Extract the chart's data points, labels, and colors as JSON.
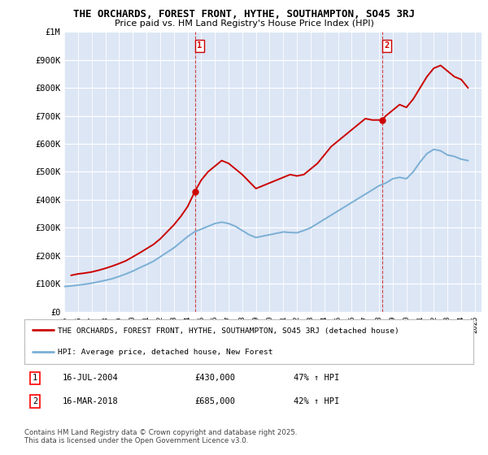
{
  "title_line1": "THE ORCHARDS, FOREST FRONT, HYTHE, SOUTHAMPTON, SO45 3RJ",
  "title_line2": "Price paid vs. HM Land Registry's House Price Index (HPI)",
  "plot_bg_color": "#dce6f5",
  "red_color": "#cc0000",
  "blue_color": "#7bafd4",
  "red_label": "THE ORCHARDS, FOREST FRONT, HYTHE, SOUTHAMPTON, SO45 3RJ (detached house)",
  "blue_label": "HPI: Average price, detached house, New Forest",
  "ylabel_ticks": [
    "£0",
    "£100K",
    "£200K",
    "£300K",
    "£400K",
    "£500K",
    "£600K",
    "£700K",
    "£800K",
    "£900K",
    "£1M"
  ],
  "ytick_values": [
    0,
    100000,
    200000,
    300000,
    400000,
    500000,
    600000,
    700000,
    800000,
    900000,
    1000000
  ],
  "annotation1": {
    "label": "1",
    "date": "16-JUL-2004",
    "price": "£430,000",
    "hpi": "47% ↑ HPI",
    "x_year": 2004.54,
    "y_val": 430000
  },
  "annotation2": {
    "label": "2",
    "date": "16-MAR-2018",
    "price": "£685,000",
    "hpi": "42% ↑ HPI",
    "x_year": 2018.21,
    "y_val": 685000
  },
  "footer": "Contains HM Land Registry data © Crown copyright and database right 2025.\nThis data is licensed under the Open Government Licence v3.0.",
  "xmin": 1995,
  "xmax": 2025.5,
  "ymin": 0,
  "ymax": 1000000,
  "xticks": [
    1995,
    1996,
    1997,
    1998,
    1999,
    2000,
    2001,
    2002,
    2003,
    2004,
    2005,
    2006,
    2007,
    2008,
    2009,
    2010,
    2011,
    2012,
    2013,
    2014,
    2015,
    2016,
    2017,
    2018,
    2019,
    2020,
    2021,
    2022,
    2023,
    2024,
    2025
  ],
  "red_x": [
    1995.5,
    1996.0,
    1996.5,
    1997.0,
    1997.5,
    1998.0,
    1998.5,
    1999.0,
    1999.5,
    2000.0,
    2000.5,
    2001.0,
    2001.5,
    2002.0,
    2002.5,
    2003.0,
    2003.5,
    2004.0,
    2004.54,
    2005.0,
    2005.5,
    2006.0,
    2006.5,
    2007.0,
    2007.5,
    2008.0,
    2008.5,
    2009.0,
    2009.5,
    2010.0,
    2010.5,
    2011.0,
    2011.5,
    2012.0,
    2012.5,
    2013.0,
    2013.5,
    2014.0,
    2014.5,
    2015.0,
    2015.5,
    2016.0,
    2016.5,
    2017.0,
    2017.5,
    2018.21,
    2018.5,
    2019.0,
    2019.5,
    2020.0,
    2020.5,
    2021.0,
    2021.5,
    2022.0,
    2022.5,
    2023.0,
    2023.5,
    2024.0,
    2024.5
  ],
  "red_y": [
    130000,
    135000,
    138000,
    142000,
    148000,
    155000,
    163000,
    172000,
    182000,
    196000,
    210000,
    225000,
    240000,
    260000,
    285000,
    310000,
    340000,
    375000,
    430000,
    470000,
    500000,
    520000,
    540000,
    530000,
    510000,
    490000,
    465000,
    440000,
    450000,
    460000,
    470000,
    480000,
    490000,
    485000,
    490000,
    510000,
    530000,
    560000,
    590000,
    610000,
    630000,
    650000,
    670000,
    690000,
    685000,
    685000,
    700000,
    720000,
    740000,
    730000,
    760000,
    800000,
    840000,
    870000,
    880000,
    860000,
    840000,
    830000,
    800000
  ],
  "blue_x": [
    1995.0,
    1995.5,
    1996.0,
    1996.5,
    1997.0,
    1997.5,
    1998.0,
    1998.5,
    1999.0,
    1999.5,
    2000.0,
    2000.5,
    2001.0,
    2001.5,
    2002.0,
    2002.5,
    2003.0,
    2003.5,
    2004.0,
    2004.5,
    2005.0,
    2005.5,
    2006.0,
    2006.5,
    2007.0,
    2007.5,
    2008.0,
    2008.5,
    2009.0,
    2009.5,
    2010.0,
    2010.5,
    2011.0,
    2011.5,
    2012.0,
    2012.5,
    2013.0,
    2013.5,
    2014.0,
    2014.5,
    2015.0,
    2015.5,
    2016.0,
    2016.5,
    2017.0,
    2017.5,
    2018.0,
    2018.5,
    2019.0,
    2019.5,
    2020.0,
    2020.5,
    2021.0,
    2021.5,
    2022.0,
    2022.5,
    2023.0,
    2023.5,
    2024.0,
    2024.5
  ],
  "blue_y": [
    90000,
    92000,
    95000,
    98000,
    102000,
    107000,
    112000,
    118000,
    126000,
    135000,
    145000,
    157000,
    168000,
    180000,
    196000,
    212000,
    228000,
    248000,
    268000,
    285000,
    295000,
    305000,
    315000,
    320000,
    315000,
    305000,
    290000,
    275000,
    265000,
    270000,
    275000,
    280000,
    285000,
    283000,
    282000,
    290000,
    300000,
    315000,
    330000,
    345000,
    360000,
    375000,
    390000,
    405000,
    420000,
    435000,
    450000,
    460000,
    475000,
    480000,
    475000,
    500000,
    535000,
    565000,
    580000,
    575000,
    560000,
    555000,
    545000,
    540000
  ]
}
